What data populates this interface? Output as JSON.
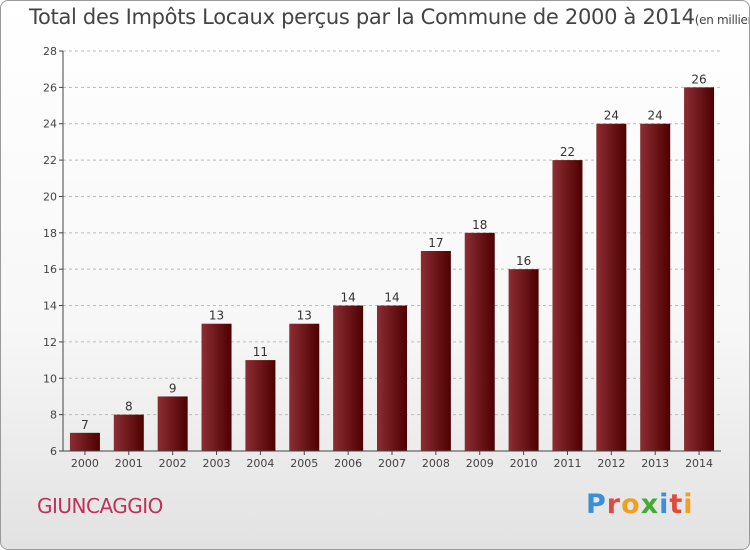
{
  "title": "Total des Impôts Locaux perçus par la Commune de 2000 à 2014",
  "title_unit": "(en milliers d'€)",
  "commune": "GIUNCAGGIO",
  "logo": {
    "text": "Proxiti",
    "letter_colors": [
      "#3a8fd6",
      "#e04a3a",
      "#f0a020",
      "#44aa33",
      "#3a8fd6",
      "#e04a3a",
      "#f0a020"
    ]
  },
  "colors": {
    "bar_light": "#8b2e33",
    "bar_dark": "#4e0000",
    "axis": "#444444",
    "grid": "#bbbbbb"
  },
  "chart_data": {
    "type": "bar",
    "title": "Total des Impôts Locaux perçus par la Commune de 2000 à 2014",
    "xlabel": "",
    "ylabel": "",
    "categories": [
      "2000",
      "2001",
      "2002",
      "2003",
      "2004",
      "2005",
      "2006",
      "2007",
      "2008",
      "2009",
      "2010",
      "2011",
      "2012",
      "2013",
      "2014"
    ],
    "values": [
      7,
      8,
      9,
      13,
      11,
      13,
      14,
      14,
      17,
      18,
      16,
      22,
      24,
      24,
      26
    ],
    "ylim": [
      6,
      28
    ],
    "yticks": [
      6,
      8,
      10,
      12,
      14,
      16,
      18,
      20,
      22,
      24,
      26,
      28
    ]
  }
}
